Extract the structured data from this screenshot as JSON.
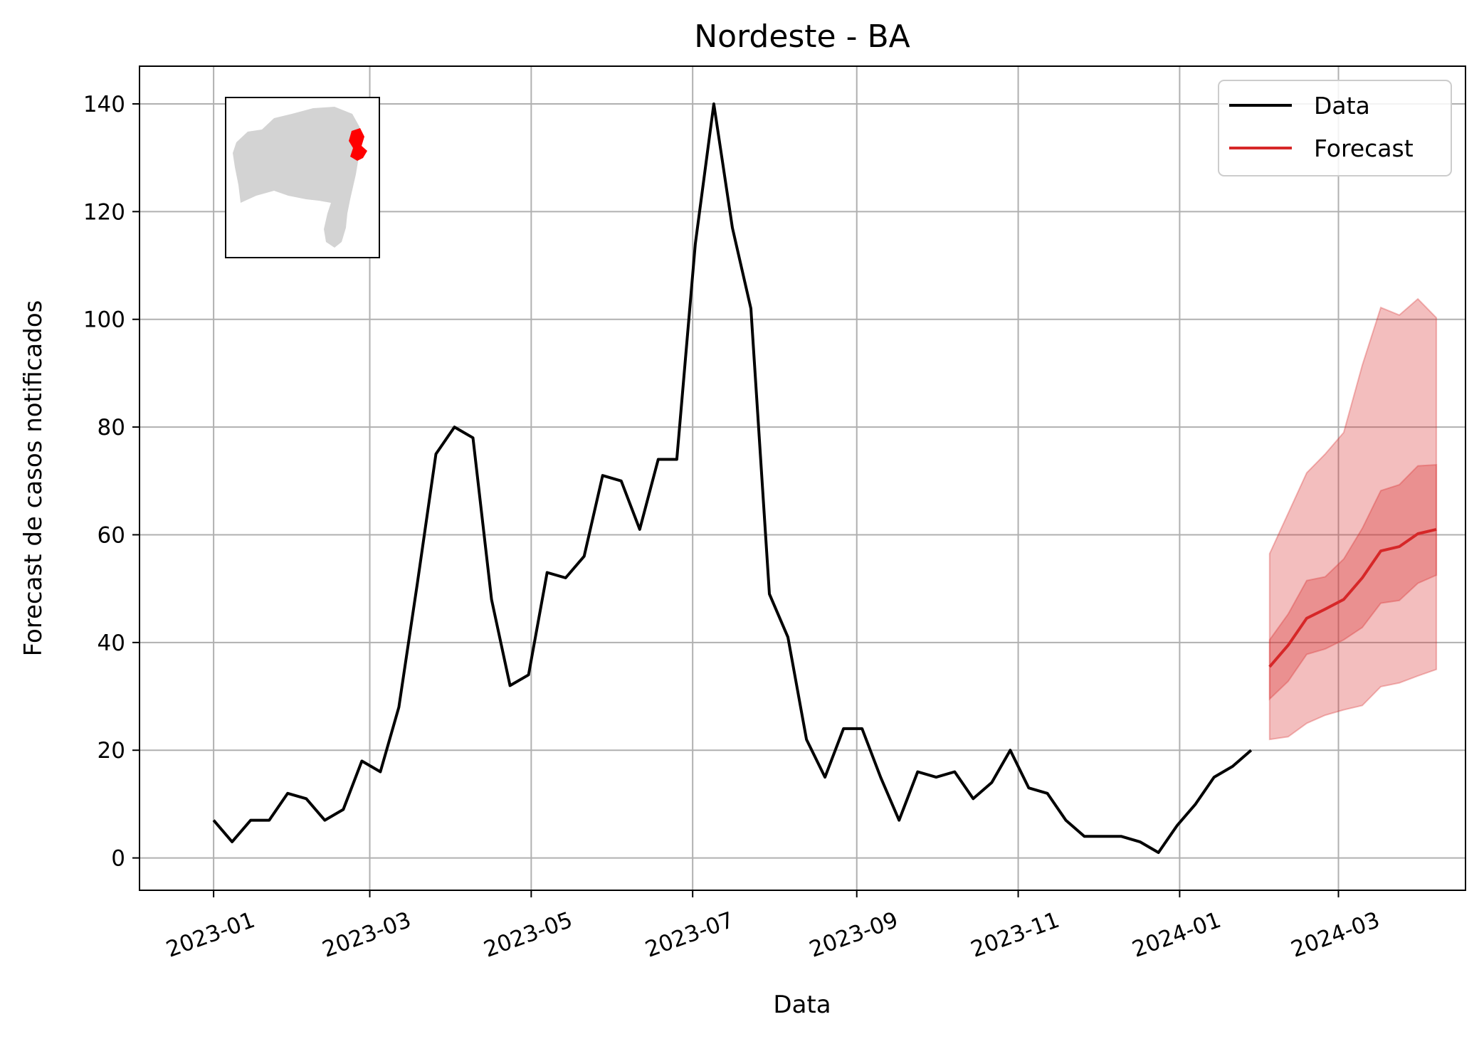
{
  "chart_data": {
    "type": "line",
    "title": "Nordeste - BA",
    "xlabel": "Data",
    "ylabel": "Forecast de casos notificados",
    "xlim": [
      "2022-12-04",
      "2024-04-18"
    ],
    "ylim": [
      -6,
      147
    ],
    "grid": true,
    "legend_position": "top-right",
    "x_ticks": [
      "2023-01",
      "2023-03",
      "2023-05",
      "2023-07",
      "2023-09",
      "2023-11",
      "2024-01",
      "2024-03"
    ],
    "y_ticks": [
      0,
      20,
      40,
      60,
      80,
      100,
      120,
      140
    ],
    "colors": {
      "data": "#000000",
      "forecast": "#d62728",
      "band_outer": "#e8a0a3",
      "band_inner": "#df7c80",
      "map_region": "#d3d3d3",
      "map_highlight": "#ff0000"
    },
    "series": [
      {
        "name": "Data",
        "points": [
          [
            "2023-01-01",
            7
          ],
          [
            "2023-01-08",
            3
          ],
          [
            "2023-01-15",
            7
          ],
          [
            "2023-01-22",
            7
          ],
          [
            "2023-01-29",
            12
          ],
          [
            "2023-02-05",
            11
          ],
          [
            "2023-02-12",
            7
          ],
          [
            "2023-02-19",
            9
          ],
          [
            "2023-02-26",
            18
          ],
          [
            "2023-03-05",
            16
          ],
          [
            "2023-03-12",
            28
          ],
          [
            "2023-03-19",
            51
          ],
          [
            "2023-03-26",
            75
          ],
          [
            "2023-04-02",
            80
          ],
          [
            "2023-04-09",
            78
          ],
          [
            "2023-04-16",
            48
          ],
          [
            "2023-04-23",
            32
          ],
          [
            "2023-04-30",
            34
          ],
          [
            "2023-05-07",
            53
          ],
          [
            "2023-05-14",
            52
          ],
          [
            "2023-05-21",
            56
          ],
          [
            "2023-05-28",
            71
          ],
          [
            "2023-06-04",
            70
          ],
          [
            "2023-06-11",
            61
          ],
          [
            "2023-06-18",
            74
          ],
          [
            "2023-06-25",
            74
          ],
          [
            "2023-07-02",
            114
          ],
          [
            "2023-07-09",
            140
          ],
          [
            "2023-07-16",
            117
          ],
          [
            "2023-07-23",
            102
          ],
          [
            "2023-07-30",
            49
          ],
          [
            "2023-08-06",
            41
          ],
          [
            "2023-08-13",
            22
          ],
          [
            "2023-08-20",
            15
          ],
          [
            "2023-08-27",
            24
          ],
          [
            "2023-09-03",
            24
          ],
          [
            "2023-09-10",
            15
          ],
          [
            "2023-09-17",
            7
          ],
          [
            "2023-09-24",
            16
          ],
          [
            "2023-10-01",
            15
          ],
          [
            "2023-10-08",
            16
          ],
          [
            "2023-10-15",
            11
          ],
          [
            "2023-10-22",
            14
          ],
          [
            "2023-10-29",
            20
          ],
          [
            "2023-11-05",
            13
          ],
          [
            "2023-11-12",
            12
          ],
          [
            "2023-11-19",
            7
          ],
          [
            "2023-11-26",
            4
          ],
          [
            "2023-12-03",
            4
          ],
          [
            "2023-12-10",
            4
          ],
          [
            "2023-12-17",
            3
          ],
          [
            "2023-12-24",
            1
          ],
          [
            "2023-12-31",
            6
          ],
          [
            "2024-01-07",
            10
          ],
          [
            "2024-01-14",
            15
          ],
          [
            "2024-01-21",
            17
          ],
          [
            "2024-01-28",
            20
          ]
        ]
      },
      {
        "name": "Forecast",
        "points": [
          [
            "2024-02-04",
            35.5
          ],
          [
            "2024-02-11",
            39.5
          ],
          [
            "2024-02-18",
            44.5
          ],
          [
            "2024-02-25",
            46.2
          ],
          [
            "2024-03-03",
            48.0
          ],
          [
            "2024-03-10",
            52.0
          ],
          [
            "2024-03-17",
            57.0
          ],
          [
            "2024-03-24",
            57.8
          ],
          [
            "2024-03-31",
            60.2
          ],
          [
            "2024-04-07",
            61.0
          ]
        ],
        "band_outer": {
          "lower": [
            22.0,
            22.5,
            25.0,
            26.5,
            27.5,
            28.3,
            31.8,
            32.5,
            33.8,
            35.0
          ],
          "upper": [
            56.5,
            64.0,
            71.5,
            75.0,
            79.0,
            91.5,
            102.2,
            100.8,
            103.8,
            100.3
          ]
        },
        "band_inner": {
          "lower": [
            29.5,
            32.8,
            37.8,
            38.8,
            40.5,
            42.8,
            47.3,
            47.8,
            51.0,
            52.5
          ],
          "upper": [
            40.5,
            45.3,
            51.5,
            52.2,
            55.5,
            61.2,
            68.2,
            69.3,
            72.8,
            73.0
          ]
        }
      }
    ]
  }
}
